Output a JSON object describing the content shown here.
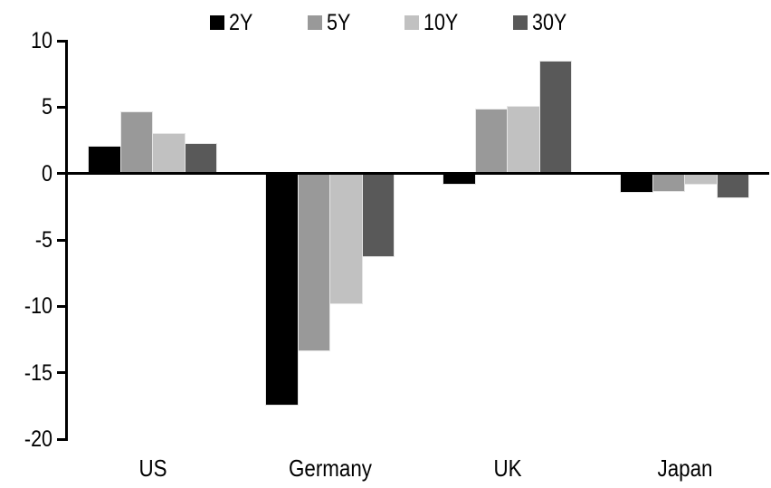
{
  "chart_data": {
    "type": "bar",
    "title": "",
    "xlabel": "",
    "ylabel": "",
    "categories": [
      "US",
      "Germany",
      "UK",
      "Japan"
    ],
    "series": [
      {
        "name": "2Y",
        "color": "#000000",
        "values": [
          2.0,
          -17.4,
          -0.8,
          -1.4
        ]
      },
      {
        "name": "5Y",
        "color": "#999999",
        "values": [
          4.6,
          -13.3,
          4.8,
          -1.3
        ]
      },
      {
        "name": "10Y",
        "color": "#c1c1c1",
        "values": [
          3.0,
          -9.8,
          5.0,
          -0.8
        ]
      },
      {
        "name": "30Y",
        "color": "#595959",
        "values": [
          2.2,
          -6.2,
          8.4,
          -1.8
        ]
      }
    ],
    "ylim": [
      -20,
      10
    ],
    "yticks": [
      10,
      5,
      0,
      -5,
      -10,
      -15,
      -20
    ],
    "legend_position": "top",
    "grid": false,
    "axis_color": "#000000",
    "background_color": "#ffffff"
  }
}
